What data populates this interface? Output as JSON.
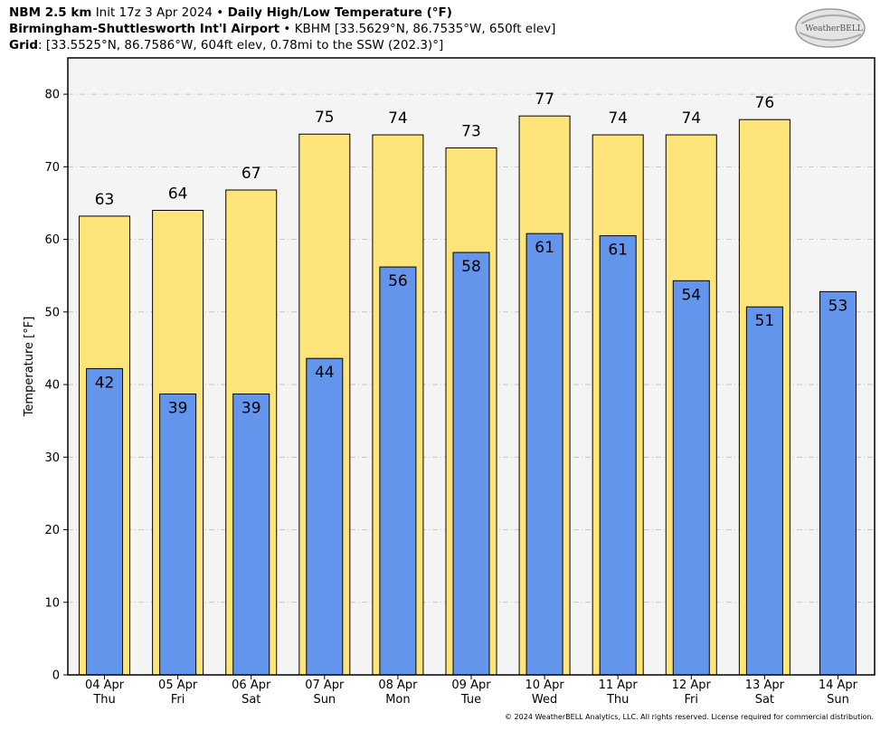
{
  "header": {
    "line1": {
      "model": "NBM 2.5 km",
      "init": "Init 17z 3 Apr 2024",
      "sep": "•",
      "product": "Daily High/Low Temperature (°F)"
    },
    "line2": {
      "station_name": "Birmingham-Shuttlesworth Int'l Airport",
      "sep": "•",
      "station_info": "KBHM [33.5629°N, 86.7535°W, 650ft elev]"
    },
    "line3": {
      "label": "Grid",
      "info": ": [33.5525°N, 86.7586°W, 604ft elev, 0.78mi to the SSW (202.3)°]"
    }
  },
  "logo": {
    "text": "WeatherBELL"
  },
  "copyright": "© 2024 WeatherBELL Analytics, LLC. All rights reserved. License required for commercial distribution.",
  "colors": {
    "high": "#ffe47a",
    "low": "#6495ed",
    "plot_bg": "#f4f4f4",
    "grid": "#bbbbbb"
  },
  "chart_data": {
    "type": "bar",
    "ylabel": "Temperature [°F]",
    "ylim": [
      0,
      85
    ],
    "yticks": [
      0,
      10,
      20,
      30,
      40,
      50,
      60,
      70,
      80
    ],
    "grid": true,
    "categories": [
      {
        "date": "04 Apr",
        "day": "Thu"
      },
      {
        "date": "05 Apr",
        "day": "Fri"
      },
      {
        "date": "06 Apr",
        "day": "Sat"
      },
      {
        "date": "07 Apr",
        "day": "Sun"
      },
      {
        "date": "08 Apr",
        "day": "Mon"
      },
      {
        "date": "09 Apr",
        "day": "Tue"
      },
      {
        "date": "10 Apr",
        "day": "Wed"
      },
      {
        "date": "11 Apr",
        "day": "Thu"
      },
      {
        "date": "12 Apr",
        "day": "Fri"
      },
      {
        "date": "13 Apr",
        "day": "Sat"
      },
      {
        "date": "14 Apr",
        "day": "Sun"
      }
    ],
    "series": [
      {
        "key": "high",
        "values": [
          63.2,
          64.0,
          66.8,
          74.5,
          74.4,
          72.6,
          77.0,
          74.4,
          74.4,
          76.5,
          null
        ],
        "labels": [
          "63",
          "64",
          "67",
          "75",
          "74",
          "73",
          "77",
          "74",
          "74",
          "76",
          ""
        ]
      },
      {
        "key": "low",
        "values": [
          42.2,
          38.7,
          38.7,
          43.6,
          56.2,
          58.2,
          60.8,
          60.5,
          54.3,
          50.7,
          52.8
        ],
        "labels": [
          "42",
          "39",
          "39",
          "44",
          "56",
          "58",
          "61",
          "61",
          "54",
          "51",
          "53"
        ]
      }
    ]
  }
}
